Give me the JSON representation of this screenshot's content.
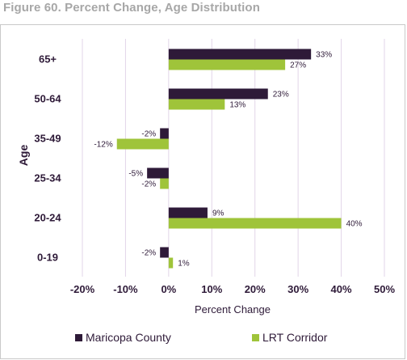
{
  "figure_title": "Figure 60. Percent Change, Age Distribution",
  "colors": {
    "maricopa": "#2e1a38",
    "lrt": "#9fc43a",
    "grid": "#e2d5e8"
  },
  "chart_data": {
    "type": "bar",
    "orientation": "horizontal",
    "title": "Figure 60. Percent Change, Age Distribution",
    "xlabel": "Percent Change",
    "ylabel": "Age",
    "xlim": [
      -20,
      50
    ],
    "x_ticks": [
      -20,
      -10,
      0,
      10,
      20,
      30,
      40,
      50
    ],
    "x_tick_labels": [
      "-20%",
      "-10%",
      "0%",
      "10%",
      "20%",
      "30%",
      "40%",
      "50%"
    ],
    "grid": "vertical",
    "legend_position": "bottom",
    "categories": [
      "65+",
      "50-64",
      "35-49",
      "25-34",
      "20-24",
      "0-19"
    ],
    "series": [
      {
        "name": "Maricopa County",
        "values": [
          33,
          23,
          -2,
          -5,
          9,
          -2
        ],
        "labels": [
          "33%",
          "23%",
          "-2%",
          "-5%",
          "9%",
          "-2%"
        ]
      },
      {
        "name": "LRT Corridor",
        "values": [
          27,
          13,
          -12,
          -2,
          40,
          1
        ],
        "labels": [
          "27%",
          "13%",
          "-12%",
          "-2%",
          "40%",
          "1%"
        ]
      }
    ]
  }
}
